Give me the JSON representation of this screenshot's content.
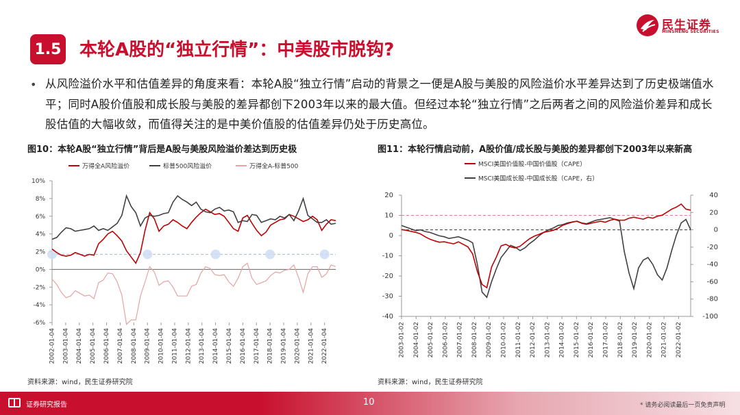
{
  "brand": {
    "name_cn": "民生证券",
    "name_en": "MINSHENG SECURITIES",
    "color": "#c8102e"
  },
  "section": {
    "number": "1.5",
    "title": "本轮A股的“独立行情”：中美股市脱钩?"
  },
  "bullet": "从风险溢价水平和估值差异的角度来看：本轮A股“独立行情”启动的背景之一便是A股与美股的风险溢价水平差异达到了历史极端值水平；同时A股价值股和成长股与美股的差异都创下2003年以来的最大值。但经过本轮“独立行情”之后两者之间的风险溢价差异和成长股估值的大幅收敛，而值得关注的是中美价值股的估值差异仍处于历史高位。",
  "figures": {
    "left": {
      "title": "图10：本轮A股“独立行情”背后是A股与美股风险溢价差达到历史极",
      "source": "资料来源：wind，民生证券研究院"
    },
    "right": {
      "title": "图11：本轮行情启动前，A股价值/成长股与美股的差异都创下2003年以来新高",
      "source": "资料来源：wind，民生证券研究院"
    }
  },
  "chart_data": [
    {
      "type": "line",
      "series": [
        {
          "name": "万得全A风险溢价",
          "color": "#c00000",
          "values": [
            2.3,
            1.9,
            1.6,
            1.5,
            1.6,
            1.9,
            1.7,
            1.5,
            1.7,
            1.6,
            2.9,
            3.4,
            4.0,
            4.3,
            3.8,
            3.2,
            2.1,
            1.4,
            0.7,
            1.9,
            4.4,
            6.4,
            5.7,
            4.3,
            4.9,
            5.1,
            5.6,
            5.3,
            4.9,
            4.6,
            5.3,
            5.9,
            6.4,
            6.8,
            6.5,
            6.2,
            6.3,
            6.0,
            5.3,
            4.6,
            4.3,
            5.8,
            6.1,
            5.2,
            4.4,
            3.8,
            4.2,
            5.0,
            5.3,
            5.6,
            5.7,
            6.2,
            6.0,
            5.7,
            5.4,
            5.6,
            6.0,
            5.6,
            4.4,
            5.1,
            5.6,
            5.5
          ]
        },
        {
          "name": "标普500风险溢价",
          "color": "#404040",
          "values": [
            3.4,
            3.6,
            4.2,
            4.7,
            4.6,
            4.3,
            4.4,
            4.5,
            4.6,
            4.9,
            4.4,
            4.6,
            4.4,
            4.8,
            5.2,
            6.1,
            8.3,
            7.1,
            6.4,
            4.9,
            5.8,
            6.1,
            6.0,
            6.1,
            6.3,
            6.4,
            7.6,
            8.3,
            7.9,
            7.6,
            7.2,
            7.6,
            6.8,
            6.5,
            6.4,
            6.8,
            7.0,
            6.6,
            6.7,
            6.5,
            5.3,
            5.5,
            5.4,
            6.2,
            6.1,
            5.3,
            5.5,
            5.7,
            5.6,
            6.0,
            5.8,
            6.2,
            5.5,
            6.6,
            8.0,
            6.1,
            5.7,
            5.3,
            5.3,
            5.6,
            5.1,
            5.2
          ]
        },
        {
          "name": "万得全A-标普500",
          "color": "#e6a3a3",
          "values": [
            -1.1,
            -1.7,
            -2.6,
            -3.2,
            -3.0,
            -2.4,
            -2.7,
            -3.0,
            -2.9,
            -3.3,
            -1.5,
            -1.2,
            -0.4,
            -0.5,
            -1.4,
            -2.9,
            -6.2,
            -5.7,
            -5.7,
            -3.0,
            -1.4,
            0.3,
            -0.3,
            -1.8,
            -1.4,
            -1.3,
            -2.0,
            -3.0,
            -3.0,
            -3.0,
            -1.9,
            -1.7,
            -0.4,
            0.3,
            0.1,
            -0.6,
            -0.7,
            -0.6,
            -1.4,
            -1.9,
            -1.0,
            0.3,
            0.7,
            -1.0,
            -1.7,
            -1.5,
            -1.3,
            -0.7,
            -0.3,
            -0.4,
            -0.1,
            0.0,
            0.5,
            -0.9,
            -2.6,
            -0.5,
            0.3,
            0.3,
            -0.9,
            -0.5,
            0.5,
            0.3
          ]
        }
      ],
      "x_tick_labels": [
        "2002-01-04",
        "2003-01-04",
        "2004-01-04",
        "2005-01-04",
        "2006-01-04",
        "2007-01-04",
        "2008-01-04",
        "2009-01-04",
        "2010-01-04",
        "2011-01-04",
        "2012-01-04",
        "2013-01-04",
        "2014-01-04",
        "2015-01-04",
        "2016-01-04",
        "2017-01-04",
        "2018-01-04",
        "2019-01-04",
        "2020-01-04",
        "2021-01-04",
        "2022-01-04"
      ],
      "y_tick_labels": [
        "10%",
        "8%",
        "6%",
        "4%",
        "2%",
        "0%",
        "-2%",
        "-4%",
        "-6%"
      ],
      "ylim": [
        -6,
        10
      ],
      "xlim": [
        "2002-01-04",
        "2022-10-31"
      ],
      "reference_line": 1.7,
      "highlight_x": [
        "2002-01-04",
        "2009-01-04",
        "2014-01-04",
        "2018-01-04",
        "2022-01-04"
      ],
      "legend_position": "top"
    },
    {
      "type": "line",
      "series": [
        {
          "name": "MSCI美国价值股-中国价值股（CAPE）",
          "color": "#c00000",
          "axis": "left",
          "values": [
            3,
            2.6,
            2.1,
            1.6,
            0.8,
            -0.6,
            -1.8,
            -2.6,
            -3.3,
            -3.1,
            -3.6,
            -4.1,
            -3.1,
            -4.3,
            -5.6,
            -9.1,
            -17.8,
            -24.2,
            -25.8,
            -15.6,
            -10.6,
            -5.1,
            -4.3,
            -5.6,
            -6.1,
            -5.3,
            -3.4,
            -1.6,
            -0.3,
            0.6,
            1.6,
            2.1,
            2.6,
            3.6,
            5.1,
            5.9,
            6.6,
            7.1,
            6.1,
            5.6,
            6.1,
            6.6,
            7.1,
            6.6,
            7.6,
            8.1,
            7.6,
            7.6,
            8.6,
            9.1,
            8.6,
            8.1,
            9.1,
            8.6,
            9.6,
            10.1,
            11.6,
            13.1,
            14.1,
            15.6,
            13.1,
            12.6
          ]
        },
        {
          "name": "MSCI美国成长股-中国成长股（CAPE，右）",
          "color": "#404040",
          "axis": "right",
          "values": [
            5,
            3,
            1,
            -1,
            0,
            -2,
            -3,
            -5,
            -7,
            -8,
            -10,
            -9,
            -8,
            -10,
            -12,
            -15,
            -40,
            -72,
            -78,
            -60,
            -45,
            -32,
            -25,
            -18,
            -20,
            -24,
            -21,
            -16,
            -12,
            -7,
            -3,
            0,
            2,
            5,
            6,
            8,
            9,
            10,
            8,
            7,
            9,
            11,
            12,
            13,
            14,
            12,
            10,
            -25,
            -50,
            -68,
            -44,
            -35,
            -32,
            -40,
            -52,
            -58,
            -44,
            -24,
            -6,
            8,
            12,
            0
          ]
        }
      ],
      "x_tick_labels": [
        "2003-01-02",
        "2004-01-02",
        "2005-01-02",
        "2006-01-02",
        "2007-01-02",
        "2008-01-02",
        "2009-01-02",
        "2010-01-02",
        "2011-01-02",
        "2012-01-02",
        "2013-01-02",
        "2014-01-02",
        "2015-01-02",
        "2016-01-02",
        "2017-01-02",
        "2018-01-02",
        "2019-01-02",
        "2020-01-02",
        "2021-01-02",
        "2022-01-02"
      ],
      "y_left_tick_labels": [
        "20",
        "10",
        "0",
        "-10",
        "-20",
        "-30",
        "-40"
      ],
      "y_right_tick_labels": [
        "40",
        "20",
        "0",
        "-20",
        "-40",
        "-60",
        "-80",
        "-100"
      ],
      "ylim_left": [
        -40,
        20
      ],
      "ylim_right": [
        -100,
        40
      ],
      "xlim": [
        "2003-01-02",
        "2022-10-31"
      ],
      "reference_line_left": 10,
      "reference_line_right": 0,
      "legend_position": "top"
    }
  ],
  "footer": {
    "left": "证券研究报告",
    "page": "10",
    "right": "* 请务必阅读最后一页免责声明"
  }
}
